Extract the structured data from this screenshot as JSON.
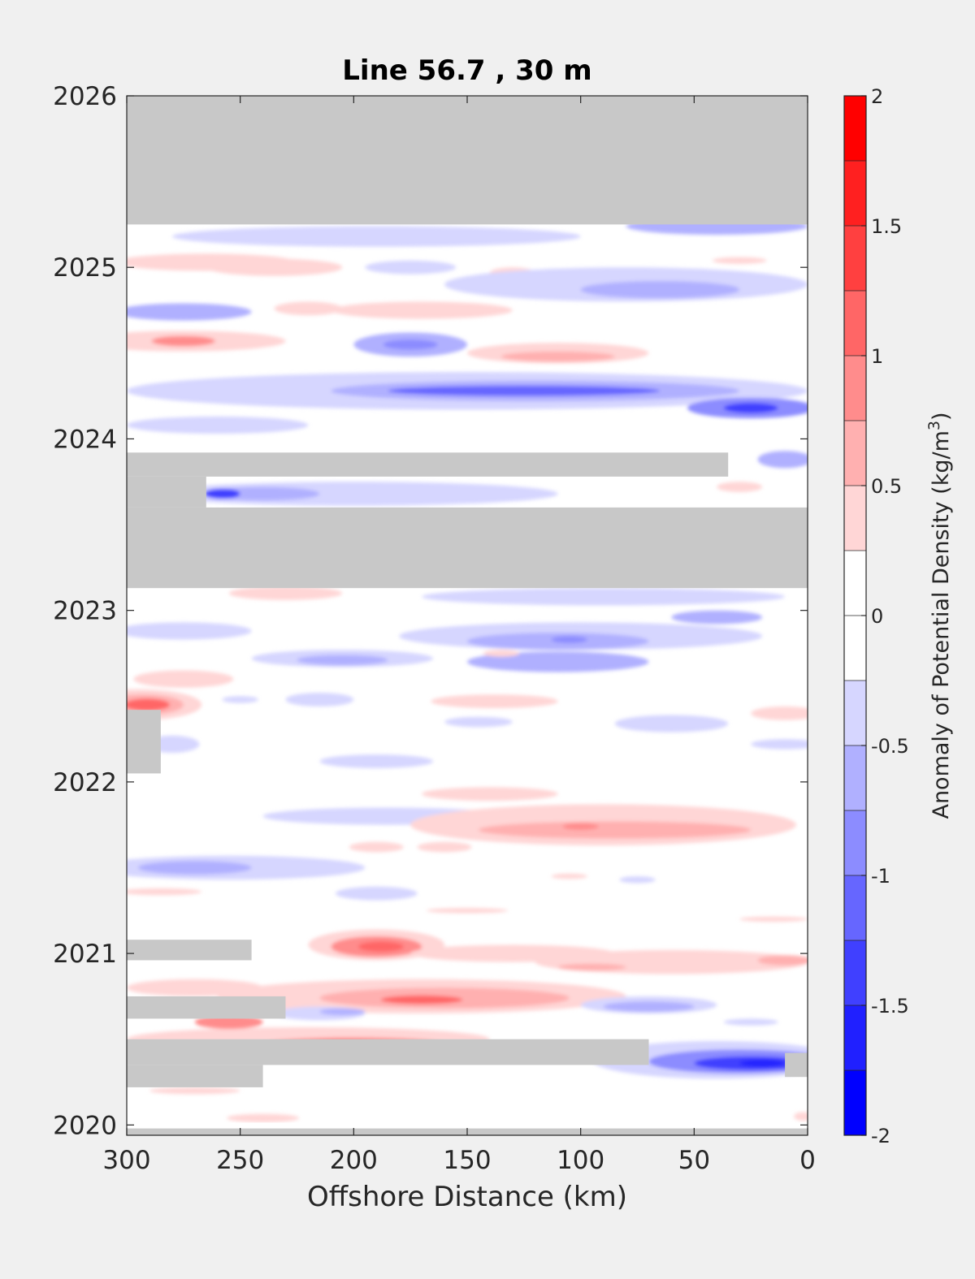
{
  "chart_data": {
    "type": "heatmap",
    "title": "Line 56.7 , 30 m",
    "xlabel": "Offshore Distance (km)",
    "ylabel": "",
    "x_direction": "reversed",
    "xlim": [
      0,
      300
    ],
    "ylim": [
      2019.94,
      2026
    ],
    "x_ticks": [
      {
        "value": 300,
        "label": "300"
      },
      {
        "value": 250,
        "label": "250"
      },
      {
        "value": 200,
        "label": "200"
      },
      {
        "value": 150,
        "label": "150"
      },
      {
        "value": 100,
        "label": "100"
      },
      {
        "value": 50,
        "label": "50"
      },
      {
        "value": 0,
        "label": "0"
      }
    ],
    "y_ticks": [
      {
        "value": 2020,
        "label": "2020"
      },
      {
        "value": 2021,
        "label": "2021"
      },
      {
        "value": 2022,
        "label": "2022"
      },
      {
        "value": 2023,
        "label": "2023"
      },
      {
        "value": 2024,
        "label": "2024"
      },
      {
        "value": 2025,
        "label": "2025"
      },
      {
        "value": 2026,
        "label": "2026"
      }
    ],
    "grid": false,
    "colorbar": {
      "title": "Anomaly of Potential Density (kg/m",
      "title_superscript": "3",
      "title_close": ")",
      "range": [
        -2,
        2
      ],
      "levels": [
        -2,
        -1.75,
        -1.5,
        -1.25,
        -1,
        -0.75,
        -0.5,
        -0.25,
        0,
        0.25,
        0.5,
        0.75,
        1,
        1.25,
        1.5,
        1.75,
        2
      ],
      "colors": [
        "#0000ff",
        "#2020ff",
        "#4040ff",
        "#6666ff",
        "#8c8cff",
        "#b0b0ff",
        "#d6d6ff",
        "#ffffff",
        "#ffffff",
        "#ffd6d6",
        "#ffb0b0",
        "#ff8c8c",
        "#ff6666",
        "#ff4040",
        "#ff2020",
        "#ff0000"
      ],
      "ticks": [
        {
          "value": 2,
          "label": "2"
        },
        {
          "value": 1.5,
          "label": "1.5"
        },
        {
          "value": 1,
          "label": "1"
        },
        {
          "value": 0.5,
          "label": "0.5"
        },
        {
          "value": 0,
          "label": "0"
        },
        {
          "value": -0.5,
          "label": "-0.5"
        },
        {
          "value": -1,
          "label": "-1"
        },
        {
          "value": -1.5,
          "label": "-1.5"
        },
        {
          "value": -2,
          "label": "-2"
        }
      ]
    },
    "no_data_color": "#c8c8c8",
    "no_data_regions": [
      {
        "x0": 0,
        "x1": 300,
        "t0": 2025.25,
        "t1": 2026
      },
      {
        "x0": 0,
        "x1": 300,
        "t0": 2023.13,
        "t1": 2023.6
      },
      {
        "x0": 35,
        "x1": 300,
        "t0": 2023.78,
        "t1": 2023.92
      },
      {
        "x0": 265,
        "x1": 300,
        "t0": 2023.6,
        "t1": 2023.78
      },
      {
        "x0": 285,
        "x1": 300,
        "t0": 2022.05,
        "t1": 2022.42
      },
      {
        "x0": 245,
        "x1": 300,
        "t0": 2020.96,
        "t1": 2021.08
      },
      {
        "x0": 230,
        "x1": 300,
        "t0": 2020.62,
        "t1": 2020.75
      },
      {
        "x0": 70,
        "x1": 300,
        "t0": 2020.35,
        "t1": 2020.5
      },
      {
        "x0": 240,
        "x1": 300,
        "t0": 2020.22,
        "t1": 2020.35
      },
      {
        "x0": 0,
        "x1": 10,
        "t0": 2020.28,
        "t1": 2020.42
      },
      {
        "x0": 0,
        "x1": 300,
        "t0": 2019.94,
        "t1": 2019.98
      }
    ],
    "anomaly_features": [
      {
        "x": 40,
        "t": 2025.24,
        "rx": 40,
        "rt": 0.05,
        "value": -0.6
      },
      {
        "x": 190,
        "t": 2025.18,
        "rx": 90,
        "rt": 0.06,
        "value": -0.3
      },
      {
        "x": 265,
        "t": 2025.03,
        "rx": 40,
        "rt": 0.05,
        "value": 0.3
      },
      {
        "x": 235,
        "t": 2025.0,
        "rx": 30,
        "rt": 0.05,
        "value": 0.35
      },
      {
        "x": 175,
        "t": 2025.0,
        "rx": 20,
        "rt": 0.04,
        "value": -0.3
      },
      {
        "x": 130,
        "t": 2024.97,
        "rx": 10,
        "rt": 0.03,
        "value": 0.3
      },
      {
        "x": 30,
        "t": 2025.04,
        "rx": 12,
        "rt": 0.02,
        "value": 0.3
      },
      {
        "x": 80,
        "t": 2024.9,
        "rx": 80,
        "rt": 0.1,
        "value": -0.3
      },
      {
        "x": 65,
        "t": 2024.87,
        "rx": 35,
        "rt": 0.05,
        "value": -0.6
      },
      {
        "x": 275,
        "t": 2024.74,
        "rx": 30,
        "rt": 0.05,
        "value": -0.6
      },
      {
        "x": 220,
        "t": 2024.76,
        "rx": 15,
        "rt": 0.04,
        "value": 0.3
      },
      {
        "x": 170,
        "t": 2024.75,
        "rx": 40,
        "rt": 0.05,
        "value": 0.35
      },
      {
        "x": 275,
        "t": 2024.57,
        "rx": 45,
        "rt": 0.06,
        "value": 0.45
      },
      {
        "x": 275,
        "t": 2024.57,
        "rx": 14,
        "rt": 0.03,
        "value": 0.85
      },
      {
        "x": 175,
        "t": 2024.55,
        "rx": 25,
        "rt": 0.07,
        "value": -0.6
      },
      {
        "x": 175,
        "t": 2024.55,
        "rx": 12,
        "rt": 0.03,
        "value": -0.95
      },
      {
        "x": 110,
        "t": 2024.5,
        "rx": 40,
        "rt": 0.06,
        "value": 0.35
      },
      {
        "x": 110,
        "t": 2024.48,
        "rx": 25,
        "rt": 0.03,
        "value": 0.7
      },
      {
        "x": 150,
        "t": 2024.28,
        "rx": 150,
        "rt": 0.11,
        "value": -0.3
      },
      {
        "x": 120,
        "t": 2024.28,
        "rx": 90,
        "rt": 0.06,
        "value": -0.7
      },
      {
        "x": 125,
        "t": 2024.28,
        "rx": 60,
        "rt": 0.03,
        "value": -1.1
      },
      {
        "x": 25,
        "t": 2024.18,
        "rx": 28,
        "rt": 0.06,
        "value": -0.95
      },
      {
        "x": 25,
        "t": 2024.18,
        "rx": 12,
        "rt": 0.03,
        "value": -1.3
      },
      {
        "x": 260,
        "t": 2024.08,
        "rx": 40,
        "rt": 0.05,
        "value": -0.3
      },
      {
        "x": 10,
        "t": 2023.88,
        "rx": 12,
        "rt": 0.05,
        "value": -0.6
      },
      {
        "x": 200,
        "t": 2023.68,
        "rx": 90,
        "rt": 0.07,
        "value": -0.3
      },
      {
        "x": 240,
        "t": 2023.68,
        "rx": 25,
        "rt": 0.04,
        "value": -0.7
      },
      {
        "x": 258,
        "t": 2023.68,
        "rx": 8,
        "rt": 0.03,
        "value": -1.3
      },
      {
        "x": 30,
        "t": 2023.72,
        "rx": 10,
        "rt": 0.03,
        "value": 0.3
      },
      {
        "x": 230,
        "t": 2023.1,
        "rx": 25,
        "rt": 0.04,
        "value": 0.35
      },
      {
        "x": 90,
        "t": 2023.08,
        "rx": 80,
        "rt": 0.05,
        "value": -0.3
      },
      {
        "x": 100,
        "t": 2022.85,
        "rx": 80,
        "rt": 0.08,
        "value": -0.35
      },
      {
        "x": 40,
        "t": 2022.96,
        "rx": 20,
        "rt": 0.04,
        "value": -0.6
      },
      {
        "x": 110,
        "t": 2022.82,
        "rx": 40,
        "rt": 0.05,
        "value": -0.7
      },
      {
        "x": 105,
        "t": 2022.83,
        "rx": 8,
        "rt": 0.02,
        "value": -1.0
      },
      {
        "x": 110,
        "t": 2022.7,
        "rx": 40,
        "rt": 0.06,
        "value": -0.6
      },
      {
        "x": 275,
        "t": 2022.88,
        "rx": 30,
        "rt": 0.05,
        "value": -0.3
      },
      {
        "x": 205,
        "t": 2022.72,
        "rx": 40,
        "rt": 0.05,
        "value": -0.4
      },
      {
        "x": 205,
        "t": 2022.71,
        "rx": 20,
        "rt": 0.03,
        "value": -0.65
      },
      {
        "x": 275,
        "t": 2022.6,
        "rx": 22,
        "rt": 0.05,
        "value": 0.3
      },
      {
        "x": 135,
        "t": 2022.75,
        "rx": 8,
        "rt": 0.02,
        "value": 0.3
      },
      {
        "x": 295,
        "t": 2022.45,
        "rx": 28,
        "rt": 0.09,
        "value": 0.35
      },
      {
        "x": 293,
        "t": 2022.45,
        "rx": 18,
        "rt": 0.06,
        "value": 0.7
      },
      {
        "x": 291,
        "t": 2022.45,
        "rx": 10,
        "rt": 0.035,
        "value": 1.2
      },
      {
        "x": 138,
        "t": 2022.47,
        "rx": 28,
        "rt": 0.04,
        "value": 0.3
      },
      {
        "x": 215,
        "t": 2022.48,
        "rx": 15,
        "rt": 0.04,
        "value": -0.3
      },
      {
        "x": 250,
        "t": 2022.48,
        "rx": 8,
        "rt": 0.02,
        "value": -0.3
      },
      {
        "x": 145,
        "t": 2022.35,
        "rx": 15,
        "rt": 0.03,
        "value": -0.3
      },
      {
        "x": 60,
        "t": 2022.34,
        "rx": 25,
        "rt": 0.05,
        "value": -0.3
      },
      {
        "x": 10,
        "t": 2022.4,
        "rx": 15,
        "rt": 0.04,
        "value": 0.3
      },
      {
        "x": 10,
        "t": 2022.22,
        "rx": 15,
        "rt": 0.03,
        "value": -0.3
      },
      {
        "x": 280,
        "t": 2022.22,
        "rx": 12,
        "rt": 0.05,
        "value": -0.3
      },
      {
        "x": 190,
        "t": 2022.12,
        "rx": 25,
        "rt": 0.04,
        "value": -0.3
      },
      {
        "x": 140,
        "t": 2021.93,
        "rx": 30,
        "rt": 0.04,
        "value": 0.3
      },
      {
        "x": 185,
        "t": 2021.8,
        "rx": 55,
        "rt": 0.05,
        "value": -0.3
      },
      {
        "x": 90,
        "t": 2021.75,
        "rx": 85,
        "rt": 0.12,
        "value": 0.35
      },
      {
        "x": 85,
        "t": 2021.72,
        "rx": 60,
        "rt": 0.05,
        "value": 0.7
      },
      {
        "x": 100,
        "t": 2021.74,
        "rx": 8,
        "rt": 0.02,
        "value": 0.8
      },
      {
        "x": 190,
        "t": 2021.62,
        "rx": 12,
        "rt": 0.03,
        "value": 0.3
      },
      {
        "x": 160,
        "t": 2021.62,
        "rx": 12,
        "rt": 0.03,
        "value": 0.3
      },
      {
        "x": 255,
        "t": 2021.5,
        "rx": 60,
        "rt": 0.07,
        "value": -0.3
      },
      {
        "x": 270,
        "t": 2021.5,
        "rx": 25,
        "rt": 0.04,
        "value": -0.6
      },
      {
        "x": 105,
        "t": 2021.45,
        "rx": 8,
        "rt": 0.015,
        "value": 0.3
      },
      {
        "x": 75,
        "t": 2021.43,
        "rx": 8,
        "rt": 0.02,
        "value": -0.3
      },
      {
        "x": 190,
        "t": 2021.35,
        "rx": 18,
        "rt": 0.04,
        "value": -0.3
      },
      {
        "x": 285,
        "t": 2021.36,
        "rx": 18,
        "rt": 0.02,
        "value": 0.3
      },
      {
        "x": 150,
        "t": 2021.25,
        "rx": 18,
        "rt": 0.015,
        "value": 0.3
      },
      {
        "x": 15,
        "t": 2021.2,
        "rx": 15,
        "rt": 0.015,
        "value": 0.3
      },
      {
        "x": 190,
        "t": 2021.05,
        "rx": 30,
        "rt": 0.09,
        "value": 0.4
      },
      {
        "x": 190,
        "t": 2021.04,
        "rx": 20,
        "rt": 0.06,
        "value": 0.75
      },
      {
        "x": 188,
        "t": 2021.04,
        "rx": 10,
        "rt": 0.03,
        "value": 1.1
      },
      {
        "x": 130,
        "t": 2021.0,
        "rx": 45,
        "rt": 0.05,
        "value": 0.3
      },
      {
        "x": 60,
        "t": 2020.95,
        "rx": 60,
        "rt": 0.07,
        "value": 0.3
      },
      {
        "x": 10,
        "t": 2020.96,
        "rx": 12,
        "rt": 0.03,
        "value": 0.7
      },
      {
        "x": 95,
        "t": 2020.92,
        "rx": 15,
        "rt": 0.02,
        "value": 0.6
      },
      {
        "x": 270,
        "t": 2020.8,
        "rx": 30,
        "rt": 0.05,
        "value": 0.3
      },
      {
        "x": 170,
        "t": 2020.75,
        "rx": 90,
        "rt": 0.1,
        "value": 0.35
      },
      {
        "x": 160,
        "t": 2020.74,
        "rx": 55,
        "rt": 0.06,
        "value": 0.7
      },
      {
        "x": 170,
        "t": 2020.73,
        "rx": 18,
        "rt": 0.025,
        "value": 1.15
      },
      {
        "x": 70,
        "t": 2020.7,
        "rx": 30,
        "rt": 0.05,
        "value": -0.3
      },
      {
        "x": 70,
        "t": 2020.69,
        "rx": 20,
        "rt": 0.03,
        "value": -0.7
      },
      {
        "x": 215,
        "t": 2020.65,
        "rx": 20,
        "rt": 0.04,
        "value": -0.3
      },
      {
        "x": 205,
        "t": 2020.66,
        "rx": 10,
        "rt": 0.02,
        "value": -0.6
      },
      {
        "x": 25,
        "t": 2020.6,
        "rx": 12,
        "rt": 0.02,
        "value": -0.3
      },
      {
        "x": 220,
        "t": 2020.5,
        "rx": 80,
        "rt": 0.07,
        "value": 0.4
      },
      {
        "x": 200,
        "t": 2020.47,
        "rx": 40,
        "rt": 0.04,
        "value": 0.8
      },
      {
        "x": 205,
        "t": 2020.47,
        "rx": 15,
        "rt": 0.025,
        "value": 1.2
      },
      {
        "x": 255,
        "t": 2020.6,
        "rx": 15,
        "rt": 0.04,
        "value": 0.85
      },
      {
        "x": 40,
        "t": 2020.38,
        "rx": 55,
        "rt": 0.11,
        "value": -0.45
      },
      {
        "x": 30,
        "t": 2020.37,
        "rx": 40,
        "rt": 0.07,
        "value": -0.9
      },
      {
        "x": 25,
        "t": 2020.36,
        "rx": 25,
        "rt": 0.04,
        "value": -1.35
      },
      {
        "x": 20,
        "t": 2020.36,
        "rx": 10,
        "rt": 0.02,
        "value": -1.7
      },
      {
        "x": 270,
        "t": 2020.2,
        "rx": 20,
        "rt": 0.02,
        "value": 0.3
      },
      {
        "x": 240,
        "t": 2020.04,
        "rx": 16,
        "rt": 0.025,
        "value": 0.3
      },
      {
        "x": 2,
        "t": 2020.05,
        "rx": 4,
        "rt": 0.025,
        "value": 0.3
      }
    ]
  }
}
